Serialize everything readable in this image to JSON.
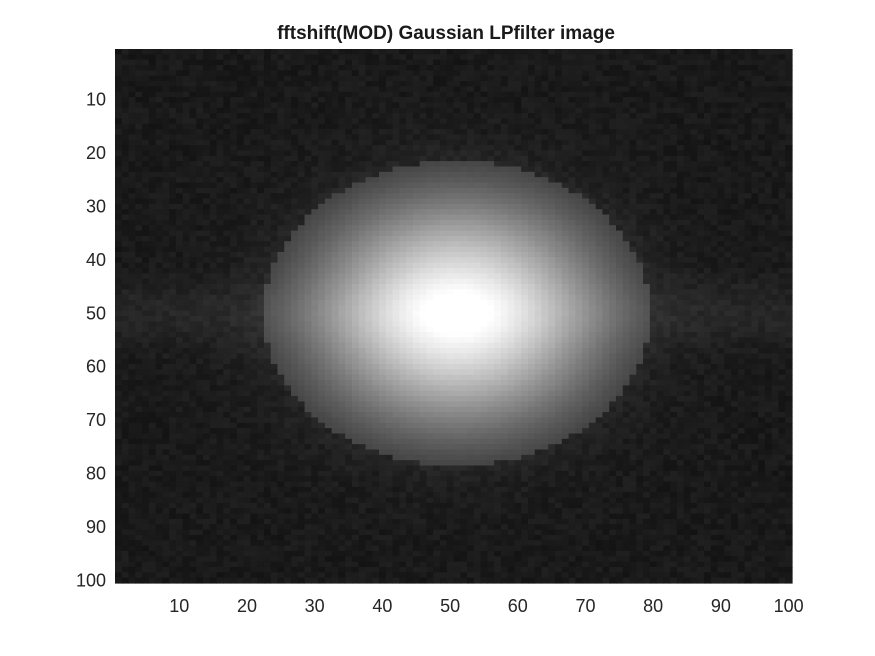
{
  "chart_data": {
    "type": "heatmap",
    "title": "fftshift(MOD) Gaussian LPfilter image",
    "xlabel": "",
    "ylabel": "",
    "xlim": [
      0.5,
      100.5
    ],
    "ylim": [
      0.5,
      100.5
    ],
    "y_direction": "reversed",
    "grid": false,
    "colormap": "gray",
    "x_ticks": [
      10,
      20,
      30,
      40,
      50,
      60,
      70,
      80,
      90,
      100
    ],
    "y_ticks": [
      10,
      20,
      30,
      40,
      50,
      60,
      70,
      80,
      90,
      100
    ],
    "rows": 100,
    "cols": 100,
    "description_values": {
      "center_row": 50,
      "center_col": 51,
      "background_intensity": 0.1,
      "peak_intensity": 1.0
    }
  }
}
